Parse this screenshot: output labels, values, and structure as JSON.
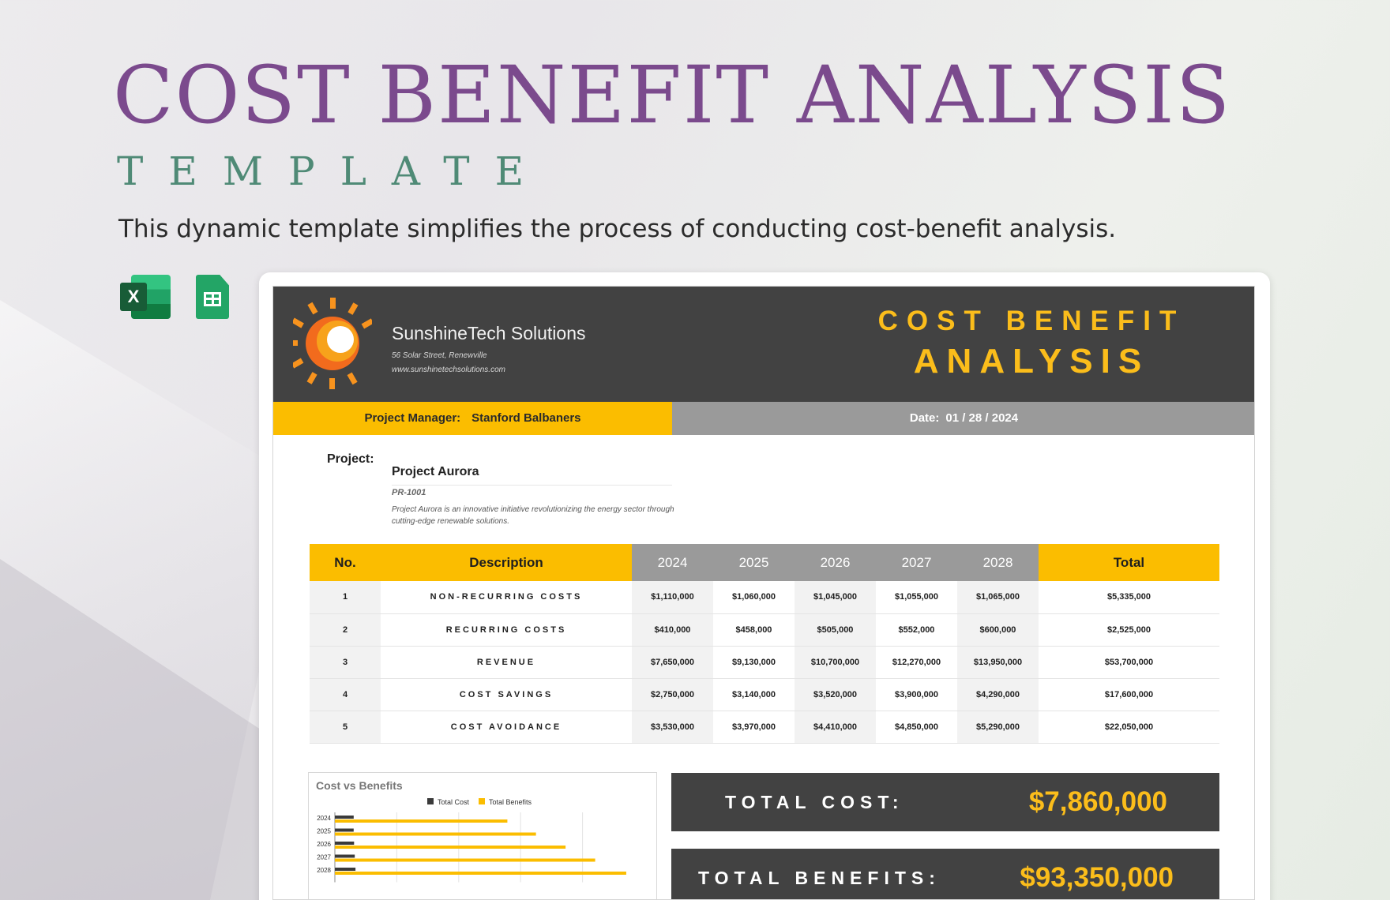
{
  "hero": {
    "title": "COST BENEFIT ANALYSIS",
    "subtitle": "TEMPLATE",
    "description": "This dynamic template simplifies the process of conducting cost-benefit analysis."
  },
  "apps": {
    "excel_letter": "X"
  },
  "company": {
    "name": "SunshineTech Solutions",
    "address": "56 Solar Street, Renewville",
    "website": "www.sunshinetechsolutions.com"
  },
  "doc_title": {
    "line1": "COST BENEFIT",
    "line2": "ANALYSIS"
  },
  "manager": {
    "label": "Project Manager:",
    "name": "Stanford Balbaners"
  },
  "date": {
    "label": "Date:",
    "value": "01 / 28 / 2024"
  },
  "project": {
    "label": "Project:",
    "name": "Project Aurora",
    "code": "PR-1001",
    "description": "Project Aurora is an innovative initiative revolutionizing the energy sector through cutting-edge renewable solutions."
  },
  "table": {
    "headers": [
      "No.",
      "Description",
      "2024",
      "2025",
      "2026",
      "2027",
      "2028",
      "Total"
    ],
    "rows": [
      [
        "1",
        "NON-RECURRING COSTS",
        "$1,110,000",
        "$1,060,000",
        "$1,045,000",
        "$1,055,000",
        "$1,065,000",
        "$5,335,000"
      ],
      [
        "2",
        "RECURRING COSTS",
        "$410,000",
        "$458,000",
        "$505,000",
        "$552,000",
        "$600,000",
        "$2,525,000"
      ],
      [
        "3",
        "REVENUE",
        "$7,650,000",
        "$9,130,000",
        "$10,700,000",
        "$12,270,000",
        "$13,950,000",
        "$53,700,000"
      ],
      [
        "4",
        "COST SAVINGS",
        "$2,750,000",
        "$3,140,000",
        "$3,520,000",
        "$3,900,000",
        "$4,290,000",
        "$17,600,000"
      ],
      [
        "5",
        "COST AVOIDANCE",
        "$3,530,000",
        "$3,970,000",
        "$4,410,000",
        "$4,850,000",
        "$5,290,000",
        "$22,050,000"
      ]
    ]
  },
  "chart_data": {
    "type": "bar",
    "orientation": "horizontal",
    "title": "Cost vs Benefits",
    "categories": [
      "2024",
      "2025",
      "2026",
      "2027",
      "2028"
    ],
    "series": [
      {
        "name": "Total Cost",
        "values": [
          1520000,
          1518000,
          1550000,
          1607000,
          1665000
        ],
        "color": "#3a3a3a"
      },
      {
        "name": "Total Benefits",
        "values": [
          13930000,
          16240000,
          18630000,
          21020000,
          23530000
        ],
        "color": "#fbbd00"
      }
    ],
    "x_ticks": [
      "$0",
      "$5,000,000",
      "$10,000,000",
      "$15,000,000",
      "$20,000,000"
    ],
    "xlim": [
      0,
      25000000
    ],
    "legend_position": "top",
    "grid": true
  },
  "totals": {
    "cost_label": "TOTAL COST:",
    "cost_value": "$7,860,000",
    "benefits_label": "TOTAL BENEFITS:",
    "benefits_value": "$93,350,000"
  },
  "colors": {
    "accent_yellow": "#fbbd00",
    "header_dark": "#424242",
    "title_purple": "#7b4a8d",
    "subtitle_green": "#4f8a76"
  }
}
